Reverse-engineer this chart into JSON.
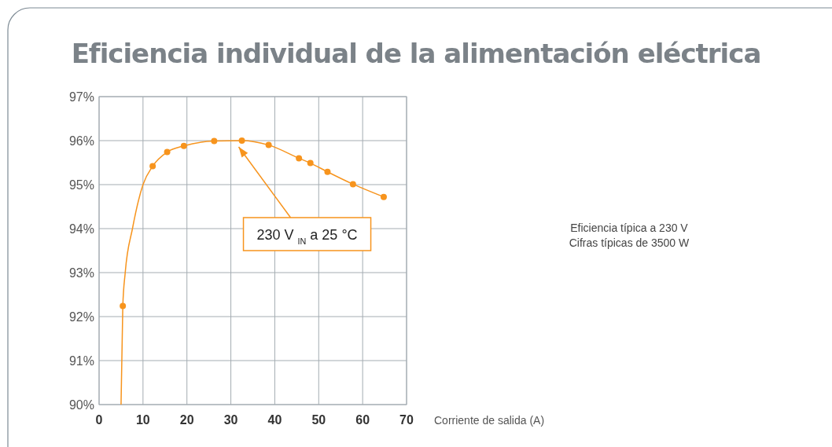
{
  "chart_data": {
    "type": "line",
    "title": "Eficiencia individual de la alimentación eléctrica",
    "xlabel": "Corriente de salida (A)",
    "xlim": [
      0,
      70
    ],
    "xticks": [
      0,
      10,
      20,
      30,
      40,
      50,
      60,
      70
    ],
    "ylim": [
      90,
      97
    ],
    "yticks": [
      {
        "value": 90,
        "label": "90%"
      },
      {
        "value": 91,
        "label": "91%"
      },
      {
        "value": 92,
        "label": "92%"
      },
      {
        "value": 93,
        "label": "93%"
      },
      {
        "value": 94,
        "label": "94%"
      },
      {
        "value": 95,
        "label": "95%"
      },
      {
        "value": 96,
        "label": "96%"
      },
      {
        "value": 97,
        "label": "97%"
      }
    ],
    "grid": true,
    "series": [
      {
        "color": "#f7941d",
        "marker": "none",
        "x": [
          5.0,
          5.4,
          5.95,
          7.6,
          10,
          12.2,
          15.5,
          19.3,
          26.2,
          32.5,
          38.6,
          45.5,
          48.1,
          52.0,
          57.8,
          64.8
        ],
        "values": [
          90,
          92.24,
          93,
          94,
          95,
          95.42,
          95.74,
          95.88,
          95.99,
          96.0,
          95.9,
          95.6,
          95.49,
          95.29,
          95.01,
          94.72
        ]
      },
      {
        "type": "scatter",
        "color": "#f7941d",
        "marker": "circle",
        "x": [
          5.4,
          12.2,
          15.5,
          19.3,
          26.2,
          32.5,
          38.6,
          45.5,
          48.1,
          52.0,
          57.8,
          64.8
        ],
        "values": [
          92.24,
          95.42,
          95.74,
          95.88,
          95.99,
          96.0,
          95.9,
          95.6,
          95.49,
          95.29,
          95.01,
          94.72
        ]
      }
    ],
    "annotations": [
      {
        "text": "230 V $_{IN}$ a 25 °C",
        "x": 32.5,
        "y": 96
      },
      "Eficiencia típica a 230 V",
      "Cifras típicas de 3500 W"
    ]
  }
}
